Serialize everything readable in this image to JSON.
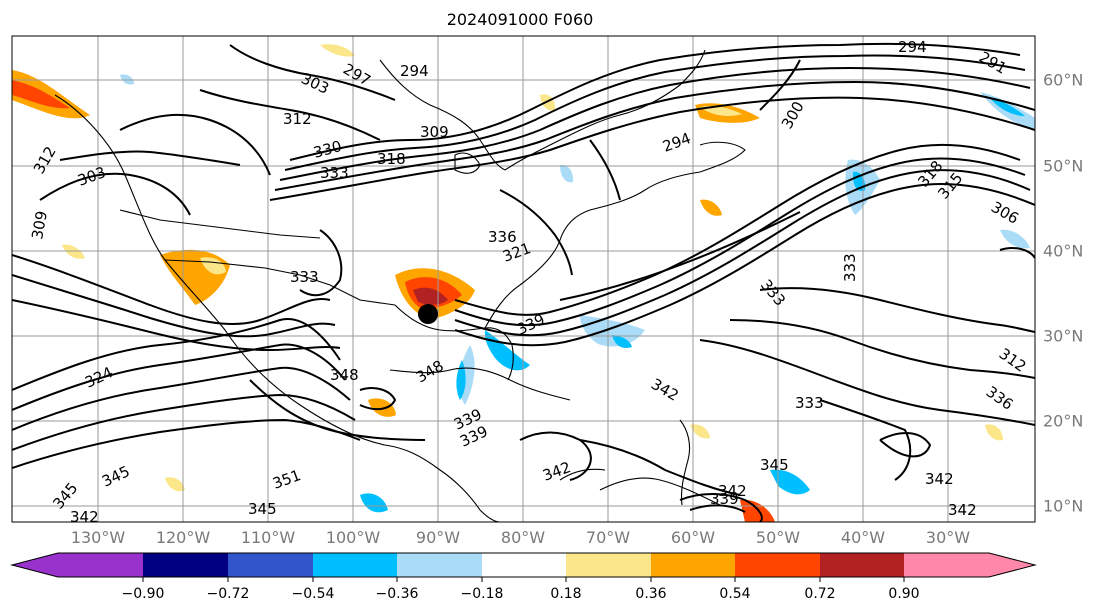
{
  "title": "2024091000 F060",
  "lon_labels": [
    {
      "text": "130°W"
    },
    {
      "text": "120°W"
    },
    {
      "text": "110°W"
    },
    {
      "text": "100°W"
    },
    {
      "text": "90°W"
    },
    {
      "text": "80°W"
    },
    {
      "text": "70°W"
    },
    {
      "text": "60°W"
    },
    {
      "text": "50°W"
    },
    {
      "text": "40°W"
    },
    {
      "text": "30°W"
    }
  ],
  "lat_labels": [
    {
      "text": "60°N"
    },
    {
      "text": "50°N"
    },
    {
      "text": "40°N"
    },
    {
      "text": "30°N"
    },
    {
      "text": "20°N"
    },
    {
      "text": "10°N"
    }
  ],
  "contour_labels": [
    "294",
    "297",
    "303",
    "312",
    "309",
    "318",
    "330",
    "333",
    "294",
    "291",
    "300",
    "294",
    "303",
    "312",
    "306",
    "315",
    "318",
    "309",
    "333",
    "336",
    "339",
    "321",
    "333",
    "333",
    "342",
    "324",
    "348",
    "348",
    "339",
    "339",
    "342",
    "345",
    "345",
    "351",
    "342",
    "345",
    "345",
    "342",
    "339",
    "342",
    "333",
    "312",
    "336"
  ],
  "colorbar": {
    "colors": [
      "#9932cc",
      "#000080",
      "#3355cc",
      "#00bfff",
      "#aadcf7",
      "#ffffff",
      "#fce68a",
      "#ffa500",
      "#ff4500",
      "#b22222",
      "#ff88aa"
    ],
    "ticks": [
      "−0.90",
      "−0.72",
      "−0.54",
      "−0.36",
      "−0.18",
      "0.18",
      "0.36",
      "0.54",
      "0.72",
      "0.90"
    ]
  },
  "marker": {
    "label": "storm-center",
    "lon": -89.8,
    "lat": 32.5
  }
}
